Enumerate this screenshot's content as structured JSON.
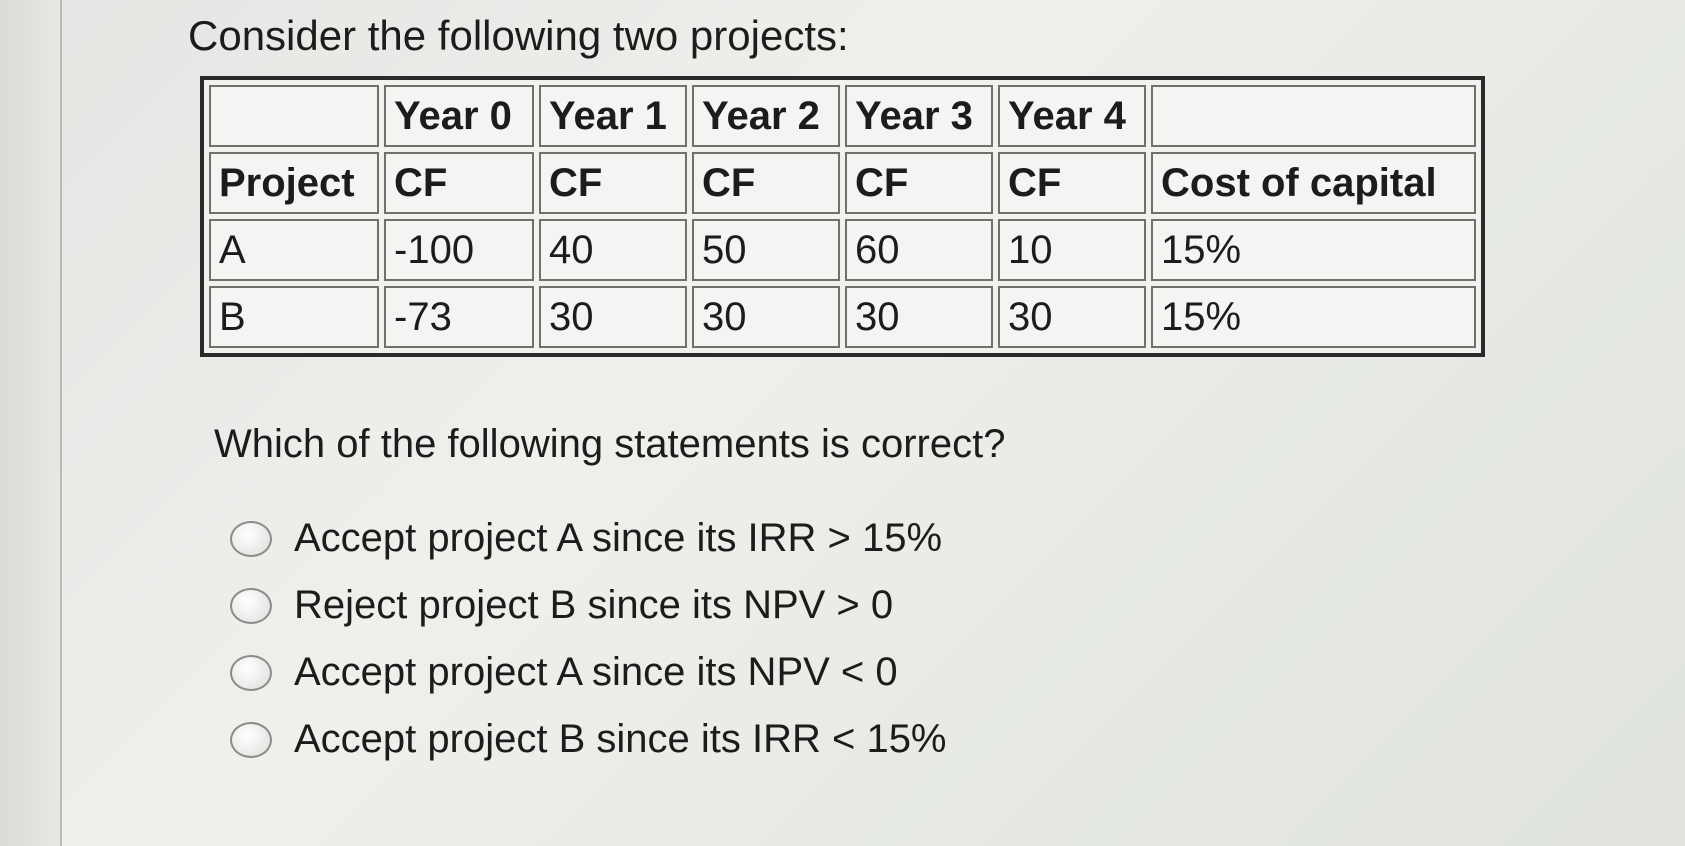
{
  "title": "Consider the following two projects:",
  "table": {
    "header1": [
      "",
      "Year 0",
      "Year 1",
      "Year 2",
      "Year 3",
      "Year 4",
      ""
    ],
    "header2": [
      "Project",
      "CF",
      "CF",
      "CF",
      "CF",
      "CF",
      "Cost of capital"
    ],
    "rows": [
      [
        "A",
        "-100",
        "40",
        "50",
        "60",
        "10",
        "15%"
      ],
      [
        "B",
        "-73",
        "30",
        "30",
        "30",
        "30",
        "15%"
      ]
    ]
  },
  "question": "Which of the following statements is correct?",
  "options": [
    {
      "label": "Accept project A since its IRR > 15%",
      "selected": false
    },
    {
      "label": "Reject project B since its NPV > 0",
      "selected": false
    },
    {
      "label": "Accept project A since its NPV < 0",
      "selected": false
    },
    {
      "label": "Accept project B since its IRR < 15%",
      "selected": false
    }
  ]
}
